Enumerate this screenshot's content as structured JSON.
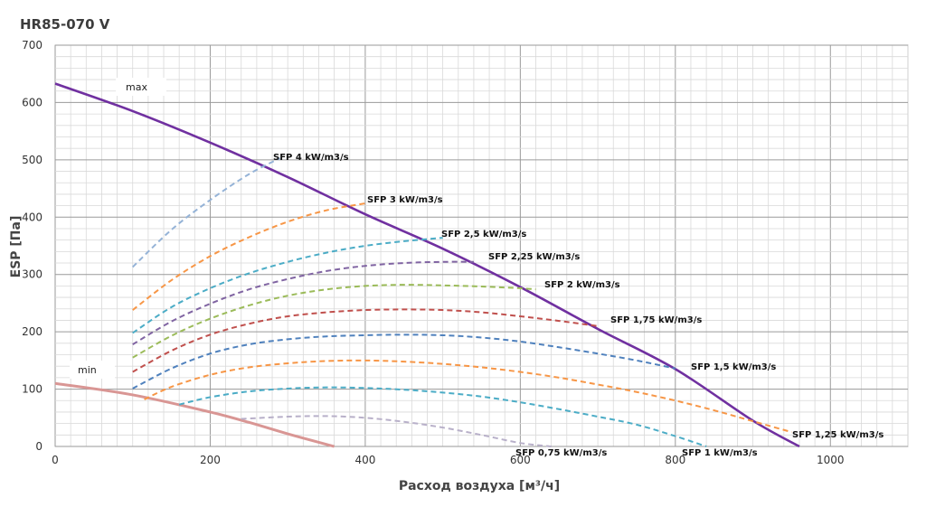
{
  "chart_data": {
    "type": "line",
    "title": "HR85-070 V",
    "xlabel": "Расход воздуха [м³/ч]",
    "ylabel": "ESP  [Па]",
    "xlim": [
      0,
      1100
    ],
    "ylim": [
      0,
      700
    ],
    "xticks": [
      0,
      200,
      400,
      600,
      800,
      1000
    ],
    "yticks": [
      0,
      100,
      200,
      300,
      400,
      500,
      600,
      700
    ],
    "grid": true,
    "boundary_curves": [
      {
        "label": "max",
        "color": "#7030a0",
        "x": [
          0,
          100,
          200,
          300,
          400,
          500,
          600,
          700,
          800,
          900,
          960
        ],
        "y": [
          633,
          585,
          530,
          470,
          405,
          345,
          278,
          205,
          135,
          45,
          0
        ]
      },
      {
        "label": "min",
        "color": "#d99694",
        "x": [
          0,
          100,
          200,
          250,
          300,
          360
        ],
        "y": [
          110,
          90,
          60,
          42,
          22,
          0
        ]
      }
    ],
    "series": [
      {
        "name": "SFP 4 kW/m3/s",
        "color": "#95b3d7",
        "x": [
          100,
          150,
          200,
          250,
          290
        ],
        "y": [
          313,
          378,
          430,
          475,
          503
        ]
      },
      {
        "name": "SFP 3 kW/m3/s",
        "color": "#f79646",
        "x": [
          100,
          150,
          200,
          250,
          300,
          350,
          400
        ],
        "y": [
          238,
          290,
          332,
          365,
          392,
          412,
          424
        ]
      },
      {
        "name": "SFP 2,5 kW/m3/s",
        "color": "#4bacc6",
        "x": [
          100,
          150,
          200,
          250,
          300,
          350,
          400,
          450,
          500
        ],
        "y": [
          198,
          243,
          276,
          302,
          322,
          338,
          350,
          358,
          364
        ]
      },
      {
        "name": "SFP 2,25 kW/m3/s",
        "color": "#8064a2",
        "x": [
          100,
          150,
          200,
          250,
          300,
          350,
          400,
          450,
          500,
          540
        ],
        "y": [
          178,
          218,
          249,
          274,
          292,
          306,
          315,
          320,
          322,
          322
        ]
      },
      {
        "name": "SFP 2 kW/m3/s",
        "color": "#9bbb59",
        "x": [
          100,
          150,
          200,
          250,
          300,
          350,
          400,
          450,
          500,
          550,
          600,
          620
        ],
        "y": [
          155,
          193,
          223,
          246,
          263,
          274,
          280,
          282,
          281,
          279,
          276,
          274
        ]
      },
      {
        "name": "SFP 1,75 kW/m3/s",
        "color": "#c0504d",
        "x": [
          100,
          150,
          200,
          250,
          300,
          350,
          400,
          450,
          500,
          550,
          600,
          650,
          700
        ],
        "y": [
          130,
          167,
          195,
          214,
          227,
          234,
          238,
          239,
          238,
          234,
          227,
          219,
          210
        ]
      },
      {
        "name": "SFP 1,5 kW/m3/s",
        "color": "#4f81bd",
        "x": [
          100,
          150,
          200,
          250,
          300,
          350,
          400,
          450,
          500,
          550,
          600,
          650,
          700,
          750,
          800
        ],
        "y": [
          101,
          136,
          162,
          178,
          187,
          192,
          194,
          195,
          194,
          190,
          183,
          173,
          162,
          150,
          136
        ]
      },
      {
        "name": "SFP 1,25 kW/m3/s",
        "color": "#f79646",
        "x": [
          115,
          150,
          200,
          250,
          300,
          350,
          400,
          450,
          500,
          550,
          600,
          650,
          700,
          750,
          800,
          850,
          900,
          950
        ],
        "y": [
          82,
          104,
          125,
          138,
          145,
          149,
          150,
          148,
          144,
          138,
          130,
          120,
          108,
          95,
          80,
          63,
          44,
          25
        ]
      },
      {
        "name": "SFP 1 kW/m3/s",
        "color": "#4bacc6",
        "x": [
          160,
          200,
          250,
          300,
          350,
          400,
          450,
          500,
          550,
          600,
          650,
          700,
          750,
          800,
          840
        ],
        "y": [
          73,
          86,
          96,
          101,
          103,
          102,
          99,
          94,
          87,
          77,
          65,
          52,
          38,
          18,
          0
        ]
      },
      {
        "name": "SFP 0,75 kW/m3/s",
        "color": "#b8b0c9",
        "x": [
          240,
          300,
          350,
          400,
          450,
          500,
          550,
          600,
          640
        ],
        "y": [
          48,
          52,
          53,
          50,
          43,
          33,
          20,
          6,
          0
        ]
      }
    ]
  }
}
